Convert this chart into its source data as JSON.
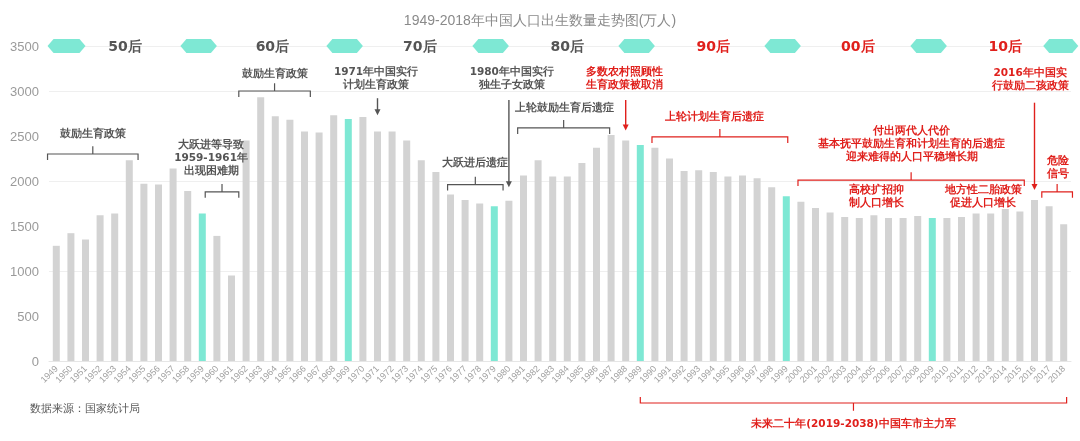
{
  "chart_data": {
    "type": "bar",
    "title": "1949-2018年中国人口出生数量走势图(万人)",
    "categories": [
      "1949",
      "1950",
      "1951",
      "1952",
      "1953",
      "1954",
      "1955",
      "1956",
      "1957",
      "1958",
      "1959",
      "1960",
      "1961",
      "1962",
      "1963",
      "1964",
      "1965",
      "1966",
      "1967",
      "1968",
      "1969",
      "1970",
      "1971",
      "1972",
      "1973",
      "1974",
      "1975",
      "1976",
      "1977",
      "1978",
      "1979",
      "1980",
      "1981",
      "1982",
      "1983",
      "1984",
      "1985",
      "1986",
      "1987",
      "1988",
      "1989",
      "1990",
      "1991",
      "1992",
      "1993",
      "1994",
      "1995",
      "1996",
      "1997",
      "1998",
      "1999",
      "2000",
      "2001",
      "2002",
      "2003",
      "2004",
      "2005",
      "2006",
      "2007",
      "2008",
      "2009",
      "2010",
      "2011",
      "2012",
      "2013",
      "2014",
      "2015",
      "2016",
      "2017",
      "2018"
    ],
    "values": [
      1280,
      1420,
      1350,
      1620,
      1640,
      2230,
      1970,
      1960,
      2140,
      1890,
      1640,
      1390,
      950,
      2450,
      2930,
      2720,
      2680,
      2550,
      2540,
      2730,
      2690,
      2710,
      2550,
      2550,
      2450,
      2230,
      2100,
      1850,
      1790,
      1750,
      1720,
      1780,
      2060,
      2230,
      2050,
      2050,
      2200,
      2370,
      2510,
      2450,
      2400,
      2370,
      2250,
      2110,
      2120,
      2100,
      2050,
      2060,
      2030,
      1930,
      1830,
      1770,
      1700,
      1650,
      1600,
      1590,
      1620,
      1590,
      1590,
      1610,
      1590,
      1590,
      1600,
      1640,
      1640,
      1690,
      1660,
      1790,
      1720,
      1520
    ],
    "colors": [
      "#d3d3d3",
      "#d3d3d3",
      "#d3d3d3",
      "#d3d3d3",
      "#d3d3d3",
      "#d3d3d3",
      "#d3d3d3",
      "#d3d3d3",
      "#d3d3d3",
      "#d3d3d3",
      "#7ee8d4",
      "#d3d3d3",
      "#d3d3d3",
      "#d3d3d3",
      "#d3d3d3",
      "#d3d3d3",
      "#d3d3d3",
      "#d3d3d3",
      "#d3d3d3",
      "#d3d3d3",
      "#7ee8d4",
      "#d3d3d3",
      "#d3d3d3",
      "#d3d3d3",
      "#d3d3d3",
      "#d3d3d3",
      "#d3d3d3",
      "#d3d3d3",
      "#d3d3d3",
      "#d3d3d3",
      "#7ee8d4",
      "#d3d3d3",
      "#d3d3d3",
      "#d3d3d3",
      "#d3d3d3",
      "#d3d3d3",
      "#d3d3d3",
      "#d3d3d3",
      "#d3d3d3",
      "#d3d3d3",
      "#7ee8d4",
      "#d3d3d3",
      "#d3d3d3",
      "#d3d3d3",
      "#d3d3d3",
      "#d3d3d3",
      "#d3d3d3",
      "#d3d3d3",
      "#d3d3d3",
      "#d3d3d3",
      "#7ee8d4",
      "#d3d3d3",
      "#d3d3d3",
      "#d3d3d3",
      "#d3d3d3",
      "#d3d3d3",
      "#d3d3d3",
      "#d3d3d3",
      "#d3d3d3",
      "#d3d3d3",
      "#7ee8d4",
      "#d3d3d3",
      "#d3d3d3",
      "#d3d3d3",
      "#d3d3d3",
      "#d3d3d3",
      "#d3d3d3",
      "#d3d3d3",
      "#d3d3d3",
      "#d3d3d3"
    ],
    "ylim": [
      0,
      3500
    ],
    "yticks": [
      0,
      500,
      1000,
      1500,
      2000,
      2500,
      3000,
      3500
    ],
    "grid": "y",
    "annotations": [
      "50后",
      "60后",
      "70后",
      "80后",
      "90后",
      "00后",
      "10后",
      "鼓励生育政策",
      "大跃进等导致1959-1961年出现困难期",
      "鼓励生育政策",
      "1971年中国实行计划生育政策",
      "大跃进后遗症",
      "1980年中国实行独生子女政策",
      "上轮鼓励生育后遗症",
      "多数农村照顾性生育政策被取消",
      "上轮计划生育后遗症",
      "付出两代人代价基本抚平鼓励生育和计划生育的后遗症迎来难得的人口平稳增长期",
      "高校扩招抑制人口增长",
      "地方性二胎政策促进人口增长",
      "2016年中国实行鼓励二孩政策",
      "危险信号",
      "未来二十年(2019-2038)中国车市主力军",
      "数据来源：国家统计局"
    ]
  }
}
